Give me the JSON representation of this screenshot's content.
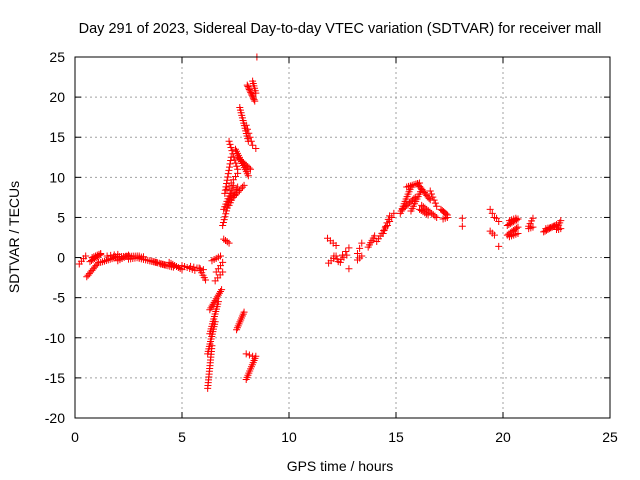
{
  "chart_data": {
    "type": "scatter",
    "title": "Day 291 of 2023, Sidereal Day-to-day VTEC variation (SDTVAR) for receiver mall",
    "xlabel": "GPS time / hours",
    "ylabel": "SDTVAR / TECUs",
    "xlim": [
      0,
      25
    ],
    "ylim": [
      -20,
      25
    ],
    "xticks": [
      0,
      5,
      10,
      15,
      20,
      25
    ],
    "yticks": [
      -20,
      -15,
      -10,
      -5,
      0,
      5,
      10,
      15,
      20,
      25
    ],
    "grid": true,
    "marker": "+",
    "marker_color": "#ff0000",
    "segments": [
      {
        "from": [
          0.2,
          -0.8
        ],
        "to": [
          0.5,
          0.2
        ],
        "n": 4
      },
      {
        "from": [
          0.55,
          -2.4
        ],
        "to": [
          1.1,
          -0.6
        ],
        "n": 10
      },
      {
        "from": [
          0.7,
          -0.5
        ],
        "to": [
          1.2,
          0.4
        ],
        "n": 8
      },
      {
        "from": [
          0.8,
          0.0
        ],
        "to": [
          1.2,
          0.5
        ],
        "n": 6
      },
      {
        "from": [
          1.2,
          -0.6
        ],
        "to": [
          2.0,
          0.1
        ],
        "n": 10
      },
      {
        "from": [
          1.5,
          0.2
        ],
        "to": [
          2.0,
          0.4
        ],
        "n": 4
      },
      {
        "from": [
          1.8,
          0.1
        ],
        "to": [
          3.0,
          0.2
        ],
        "n": 14
      },
      {
        "from": [
          2.0,
          -0.4
        ],
        "to": [
          2.5,
          0.3
        ],
        "n": 6
      },
      {
        "from": [
          2.5,
          -0.2
        ],
        "to": [
          3.2,
          0.1
        ],
        "n": 8
      },
      {
        "from": [
          3.0,
          -0.1
        ],
        "to": [
          3.8,
          -0.6
        ],
        "n": 9
      },
      {
        "from": [
          3.5,
          -0.4
        ],
        "to": [
          4.2,
          -0.9
        ],
        "n": 9
      },
      {
        "from": [
          4.0,
          -0.8
        ],
        "to": [
          4.6,
          -1.2
        ],
        "n": 8
      },
      {
        "from": [
          4.4,
          -0.6
        ],
        "to": [
          5.0,
          -1.5
        ],
        "n": 8
      },
      {
        "from": [
          5.0,
          -1.0
        ],
        "to": [
          5.6,
          -1.6
        ],
        "n": 6
      },
      {
        "from": [
          5.4,
          -1.1
        ],
        "to": [
          6.0,
          -1.5
        ],
        "n": 5
      },
      {
        "from": [
          5.8,
          -1.3
        ],
        "to": [
          6.1,
          -2.8
        ],
        "n": 6
      },
      {
        "from": [
          6.4,
          -0.4
        ],
        "to": [
          6.8,
          0.2
        ],
        "n": 5
      },
      {
        "from": [
          6.6,
          -1.8
        ],
        "to": [
          6.9,
          -0.6
        ],
        "n": 4
      },
      {
        "from": [
          6.55,
          -2.9
        ],
        "to": [
          6.9,
          -1.8
        ],
        "n": 4
      },
      {
        "from": [
          6.3,
          -6.5
        ],
        "to": [
          6.85,
          -4.0
        ],
        "n": 12
      },
      {
        "from": [
          6.3,
          -9.5
        ],
        "to": [
          6.7,
          -5.5
        ],
        "n": 14
      },
      {
        "from": [
          6.2,
          -12.0
        ],
        "to": [
          6.55,
          -8.0
        ],
        "n": 14
      },
      {
        "from": [
          6.2,
          -16.3
        ],
        "to": [
          6.4,
          -11.0
        ],
        "n": 16
      },
      {
        "from": [
          6.95,
          2.3
        ],
        "to": [
          7.2,
          1.8
        ],
        "n": 4
      },
      {
        "from": [
          6.9,
          4.0
        ],
        "to": [
          7.3,
          8.0
        ],
        "n": 12
      },
      {
        "from": [
          7.0,
          8.0
        ],
        "to": [
          7.3,
          12.5
        ],
        "n": 12
      },
      {
        "from": [
          6.95,
          6.0
        ],
        "to": [
          7.4,
          9.0
        ],
        "n": 10
      },
      {
        "from": [
          7.2,
          6.5
        ],
        "to": [
          7.6,
          8.8
        ],
        "n": 8
      },
      {
        "from": [
          7.4,
          7.5
        ],
        "to": [
          7.9,
          9.0
        ],
        "n": 8
      },
      {
        "from": [
          7.1,
          8.5
        ],
        "to": [
          7.6,
          10.5
        ],
        "n": 6
      },
      {
        "from": [
          7.2,
          14.5
        ],
        "to": [
          7.6,
          11.0
        ],
        "n": 10
      },
      {
        "from": [
          7.5,
          13.5
        ],
        "to": [
          8.1,
          10.2
        ],
        "n": 14
      },
      {
        "from": [
          7.6,
          12.5
        ],
        "to": [
          8.2,
          11.0
        ],
        "n": 10
      },
      {
        "from": [
          7.7,
          18.7
        ],
        "to": [
          8.1,
          14.5
        ],
        "n": 14
      },
      {
        "from": [
          8.0,
          16.5
        ],
        "to": [
          8.3,
          14.0
        ],
        "n": 6
      },
      {
        "from": [
          8.05,
          21.5
        ],
        "to": [
          8.4,
          19.5
        ],
        "n": 12
      },
      {
        "from": [
          8.3,
          22.0
        ],
        "to": [
          8.45,
          20.5
        ],
        "n": 6
      },
      {
        "from": [
          8.45,
          13.6
        ],
        "to": [
          8.45,
          13.6
        ],
        "n": 1
      },
      {
        "from": [
          8.5,
          25.0
        ],
        "to": [
          8.5,
          25.0
        ],
        "n": 1
      },
      {
        "from": [
          7.55,
          -9.0
        ],
        "to": [
          7.9,
          -6.8
        ],
        "n": 10
      },
      {
        "from": [
          8.0,
          -12.0
        ],
        "to": [
          8.3,
          -12.3
        ],
        "n": 3
      },
      {
        "from": [
          8.0,
          -15.2
        ],
        "to": [
          8.45,
          -12.3
        ],
        "n": 12
      },
      {
        "from": [
          11.85,
          -0.7
        ],
        "to": [
          12.2,
          0.2
        ],
        "n": 4
      },
      {
        "from": [
          11.8,
          2.4
        ],
        "to": [
          12.2,
          1.5
        ],
        "n": 4
      },
      {
        "from": [
          12.1,
          0.2
        ],
        "to": [
          12.4,
          -0.6
        ],
        "n": 3
      },
      {
        "from": [
          12.3,
          -0.5
        ],
        "to": [
          12.7,
          0.3
        ],
        "n": 4
      },
      {
        "from": [
          12.5,
          0.3
        ],
        "to": [
          12.8,
          1.2
        ],
        "n": 3
      },
      {
        "from": [
          12.8,
          -1.4
        ],
        "to": [
          12.8,
          -1.4
        ],
        "n": 1
      },
      {
        "from": [
          13.2,
          0.5
        ],
        "to": [
          13.4,
          1.8
        ],
        "n": 3
      },
      {
        "from": [
          13.2,
          -0.3
        ],
        "to": [
          13.4,
          0.2
        ],
        "n": 3
      },
      {
        "from": [
          13.7,
          1.3
        ],
        "to": [
          14.0,
          2.7
        ],
        "n": 6
      },
      {
        "from": [
          14.1,
          2.0
        ],
        "to": [
          14.5,
          3.7
        ],
        "n": 6
      },
      {
        "from": [
          14.4,
          3.0
        ],
        "to": [
          14.7,
          5.2
        ],
        "n": 6
      },
      {
        "from": [
          14.6,
          4.0
        ],
        "to": [
          14.9,
          5.5
        ],
        "n": 4
      },
      {
        "from": [
          15.2,
          5.5
        ],
        "to": [
          15.7,
          8.8
        ],
        "n": 12
      },
      {
        "from": [
          15.3,
          6.0
        ],
        "to": [
          15.9,
          7.5
        ],
        "n": 10
      },
      {
        "from": [
          15.5,
          8.8
        ],
        "to": [
          16.1,
          9.3
        ],
        "n": 8
      },
      {
        "from": [
          15.7,
          5.8
        ],
        "to": [
          16.2,
          8.5
        ],
        "n": 10
      },
      {
        "from": [
          16.0,
          9.2
        ],
        "to": [
          16.6,
          7.2
        ],
        "n": 12
      },
      {
        "from": [
          16.1,
          6.0
        ],
        "to": [
          16.5,
          5.3
        ],
        "n": 6
      },
      {
        "from": [
          16.2,
          6.5
        ],
        "to": [
          16.9,
          5.0
        ],
        "n": 10
      },
      {
        "from": [
          16.6,
          8.3
        ],
        "to": [
          16.9,
          6.4
        ],
        "n": 6
      },
      {
        "from": [
          17.1,
          6.0
        ],
        "to": [
          17.4,
          5.3
        ],
        "n": 6
      },
      {
        "from": [
          17.2,
          4.8
        ],
        "to": [
          17.4,
          5.0
        ],
        "n": 3
      },
      {
        "from": [
          18.1,
          4.9
        ],
        "to": [
          18.1,
          4.9
        ],
        "n": 1
      },
      {
        "from": [
          18.1,
          3.9
        ],
        "to": [
          18.1,
          3.9
        ],
        "n": 1
      },
      {
        "from": [
          19.4,
          6.0
        ],
        "to": [
          19.6,
          5.0
        ],
        "n": 3
      },
      {
        "from": [
          19.4,
          3.3
        ],
        "to": [
          19.6,
          2.8
        ],
        "n": 3
      },
      {
        "from": [
          19.7,
          4.9
        ],
        "to": [
          19.8,
          4.5
        ],
        "n": 2
      },
      {
        "from": [
          19.8,
          1.4
        ],
        "to": [
          19.8,
          1.4
        ],
        "n": 1
      },
      {
        "from": [
          20.2,
          4.0
        ],
        "to": [
          20.7,
          4.8
        ],
        "n": 8
      },
      {
        "from": [
          20.2,
          2.8
        ],
        "to": [
          20.7,
          3.8
        ],
        "n": 8
      },
      {
        "from": [
          20.3,
          2.6
        ],
        "to": [
          20.7,
          3.0
        ],
        "n": 5
      },
      {
        "from": [
          20.3,
          4.6
        ],
        "to": [
          20.6,
          4.9
        ],
        "n": 4
      },
      {
        "from": [
          21.2,
          3.9
        ],
        "to": [
          21.4,
          4.9
        ],
        "n": 4
      },
      {
        "from": [
          21.2,
          3.6
        ],
        "to": [
          21.4,
          3.8
        ],
        "n": 3
      },
      {
        "from": [
          21.9,
          3.2
        ],
        "to": [
          22.5,
          4.1
        ],
        "n": 10
      },
      {
        "from": [
          22.0,
          3.6
        ],
        "to": [
          22.4,
          3.9
        ],
        "n": 5
      },
      {
        "from": [
          22.5,
          3.5
        ],
        "to": [
          22.7,
          4.6
        ],
        "n": 5
      },
      {
        "from": [
          22.6,
          3.5
        ],
        "to": [
          22.7,
          3.6
        ],
        "n": 2
      }
    ]
  }
}
